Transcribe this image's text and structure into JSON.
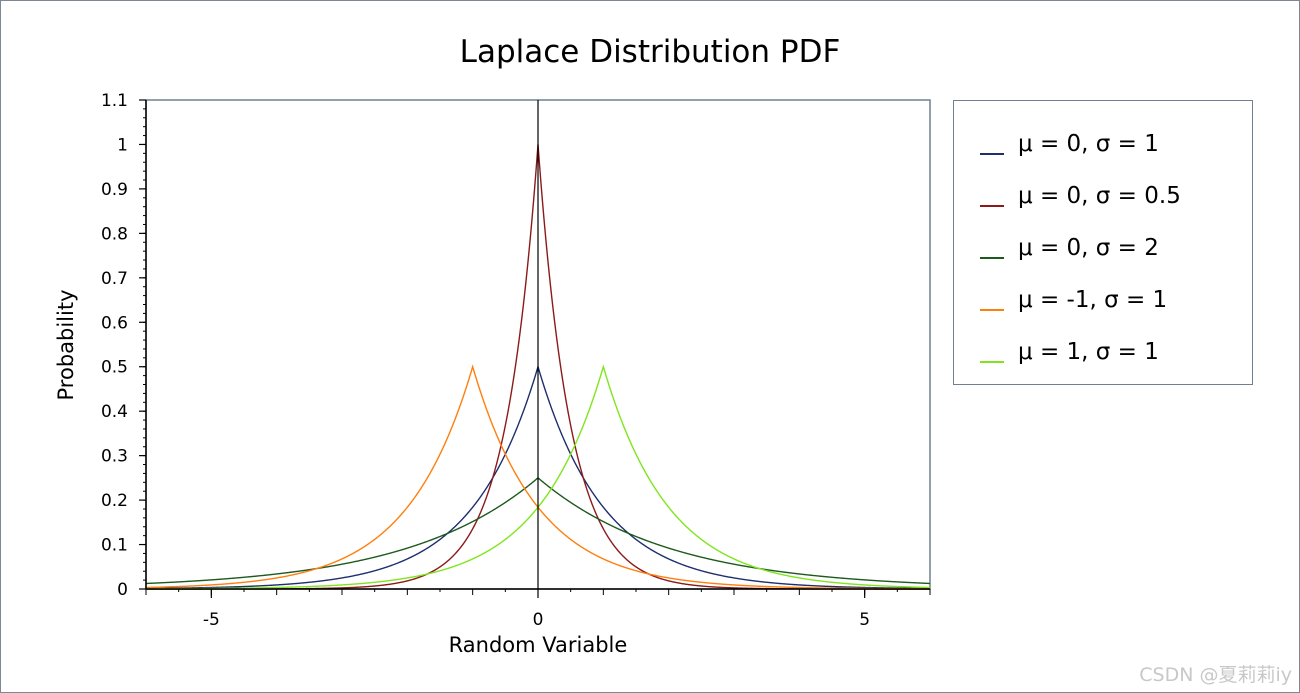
{
  "chart_data": {
    "type": "line",
    "title": "Laplace Distribution PDF",
    "xlabel": "Random Variable",
    "ylabel": "Probability",
    "xlim": [
      -6,
      6
    ],
    "ylim": [
      0,
      1.1
    ],
    "xticks": [
      -5,
      0,
      5
    ],
    "xtick_labels": [
      "-5",
      "0",
      "5"
    ],
    "yticks": [
      0,
      0.1,
      0.2,
      0.3,
      0.4,
      0.5,
      0.6,
      0.7,
      0.8,
      0.9,
      1,
      1.1
    ],
    "ytick_labels": [
      "0",
      "0.1",
      "0.2",
      "0.3",
      "0.4",
      "0.5",
      "0.6",
      "0.7",
      "0.8",
      "0.9",
      "1",
      "1.1"
    ],
    "grid": false,
    "legend_position": "right",
    "series": [
      {
        "name": "μ = 0, σ = 1",
        "mu": 0,
        "sigma": 1,
        "color": "#1f2f6e"
      },
      {
        "name": "μ = 0, σ = 0.5",
        "mu": 0,
        "sigma": 0.5,
        "color": "#8b1a1a"
      },
      {
        "name": "μ = 0, σ = 2",
        "mu": 0,
        "sigma": 2,
        "color": "#1e5a1e"
      },
      {
        "name": "μ = -1, σ = 1",
        "mu": -1,
        "sigma": 1,
        "color": "#ff7f0e"
      },
      {
        "name": "μ = 1, σ = 1",
        "mu": 1,
        "sigma": 1,
        "color": "#7fe61e"
      }
    ]
  },
  "watermark": "CSDN @夏莉莉iy"
}
